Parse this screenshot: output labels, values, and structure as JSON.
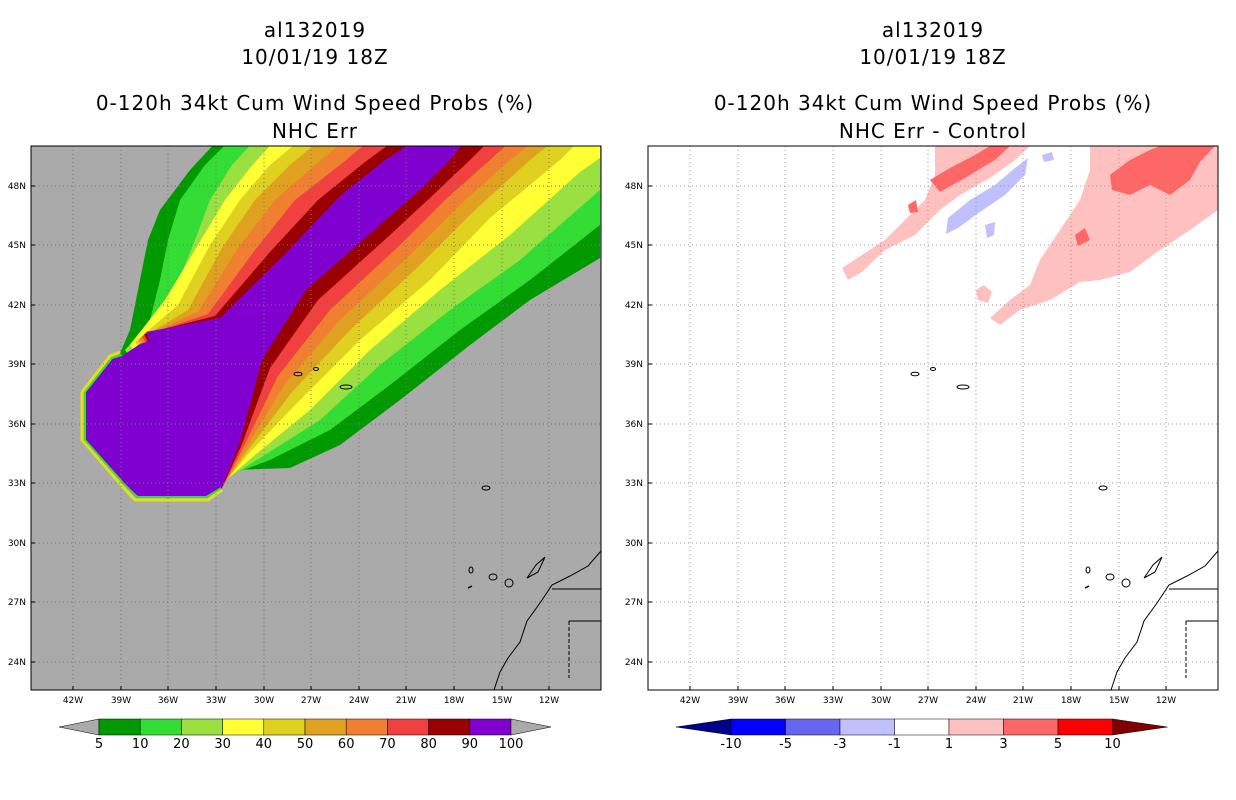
{
  "left_panel": {
    "storm_id": "al132019",
    "datetime": "10/01/19 18Z",
    "product": "0-120h 34kt Cum Wind Speed Probs (%)",
    "subtitle": "NHC Err",
    "colorbar": {
      "labels": [
        "5",
        "10",
        "20",
        "30",
        "40",
        "50",
        "60",
        "70",
        "80",
        "90",
        "100"
      ],
      "colors": [
        "#009900",
        "#33dd33",
        "#99e040",
        "#ffff33",
        "#e0d020",
        "#e0a020",
        "#f08030",
        "#f04040",
        "#990000",
        "#8000d0"
      ]
    }
  },
  "right_panel": {
    "storm_id": "al132019",
    "datetime": "10/01/19 18Z",
    "product": "0-120h 34kt Cum Wind Speed Probs (%)",
    "subtitle": "NHC Err - Control",
    "colorbar": {
      "labels": [
        "-10",
        "-5",
        "-3",
        "-1",
        "1",
        "3",
        "5",
        "10"
      ],
      "colors": [
        "#00008a",
        "#0000ff",
        "#6666ee",
        "#c0c0ff",
        "#ffffff",
        "#ffc0c0",
        "#ff6666",
        "#ff0000",
        "#800000"
      ]
    }
  },
  "map": {
    "lat_labels": [
      "48N",
      "45N",
      "42N",
      "39N",
      "36N",
      "33N",
      "30N",
      "27N",
      "24N"
    ],
    "lon_labels": [
      "42W",
      "39W",
      "36W",
      "33W",
      "30W",
      "27W",
      "24W",
      "21W",
      "18W",
      "15W",
      "12W"
    ],
    "background_color": "#aaaaaa"
  }
}
